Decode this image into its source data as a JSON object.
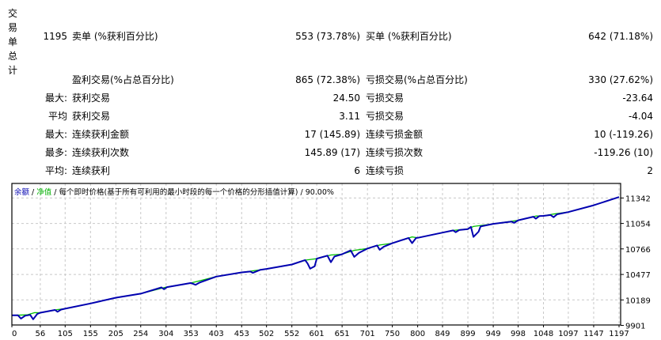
{
  "stats": {
    "section_label": "交易单总计",
    "rows": [
      {
        "c1": "1195",
        "c2": "卖单 (%获利百分比)",
        "c3": "553 (73.78%)",
        "c4": "买单 (%获利百分比)",
        "c5": "642 (71.18%)"
      },
      {
        "c1": "",
        "c2": "盈利交易(%占总百分比)",
        "c3": "865 (72.38%)",
        "c4": "亏损交易(%占总百分比)",
        "c5": "330 (27.62%)"
      },
      {
        "c1": "最大:",
        "c2": "获利交易",
        "c3": "24.50",
        "c4": "亏损交易",
        "c5": "-23.64"
      },
      {
        "c1": "平均",
        "c2": "获利交易",
        "c3": "3.11",
        "c4": "亏损交易",
        "c5": "-4.04"
      },
      {
        "c1": "最大:",
        "c2": "连续获利金额",
        "c3": "17 (145.89)",
        "c4": "连续亏损金额",
        "c5": "10 (-119.26)"
      },
      {
        "c1": "最多:",
        "c2": "连续获利次数",
        "c3": "145.89 (17)",
        "c4": "连续亏损次数",
        "c5": "-119.26 (10)"
      },
      {
        "c1": "平均:",
        "c2": "连续获利",
        "c3": "6",
        "c4": "连续亏损",
        "c5": "2"
      }
    ]
  },
  "chart_legend": {
    "balance": "余额",
    "sep1": " / ",
    "equity": "净值",
    "sep2": " / ",
    "model": "每个即时价格(基于所有可利用的最小时段的每一个价格的分形插值计算)",
    "sep3": " / ",
    "quality": "90.00%"
  },
  "chart_data": {
    "type": "line",
    "title": "",
    "xlabel": "",
    "ylabel": "",
    "x_ticks": [
      0,
      56,
      105,
      155,
      205,
      254,
      304,
      353,
      403,
      453,
      502,
      552,
      601,
      651,
      701,
      750,
      800,
      849,
      899,
      949,
      998,
      1048,
      1097,
      1147,
      1197
    ],
    "y_ticks": [
      9901,
      10189,
      10477,
      10766,
      11054,
      11342
    ],
    "xlim": [
      0,
      1200
    ],
    "ylim": [
      9901,
      11505
    ],
    "grid": true,
    "colors": {
      "balance": "#0000b0",
      "equity": "#00c000"
    },
    "series": [
      {
        "name": "净值",
        "color": "#00c000",
        "points": [
          [
            0,
            10015
          ],
          [
            30,
            10020
          ],
          [
            45,
            10045
          ],
          [
            56,
            10044
          ],
          [
            90,
            10080
          ],
          [
            105,
            10090
          ],
          [
            155,
            10149
          ],
          [
            205,
            10214
          ],
          [
            254,
            10260
          ],
          [
            304,
            10334
          ],
          [
            353,
            10380
          ],
          [
            403,
            10453
          ],
          [
            453,
            10500
          ],
          [
            502,
            10540
          ],
          [
            552,
            10590
          ],
          [
            580,
            10640
          ],
          [
            601,
            10656
          ],
          [
            629,
            10697
          ],
          [
            651,
            10706
          ],
          [
            675,
            10750
          ],
          [
            701,
            10770
          ],
          [
            725,
            10810
          ],
          [
            750,
            10830
          ],
          [
            789,
            10902
          ],
          [
            800,
            10891
          ],
          [
            849,
            10950
          ],
          [
            870,
            10975
          ],
          [
            899,
            10990
          ],
          [
            910,
            11020
          ],
          [
            949,
            11049
          ],
          [
            998,
            11090
          ],
          [
            1033,
            11138
          ],
          [
            1048,
            11140
          ],
          [
            1068,
            11160
          ],
          [
            1097,
            11183
          ],
          [
            1147,
            11260
          ],
          [
            1197,
            11353
          ]
        ]
      },
      {
        "name": "余额",
        "color": "#0000b0",
        "points": [
          [
            0,
            10015
          ],
          [
            12,
            10015
          ],
          [
            18,
            9978
          ],
          [
            26,
            10010
          ],
          [
            36,
            10020
          ],
          [
            42,
            9970
          ],
          [
            50,
            10030
          ],
          [
            56,
            10044
          ],
          [
            85,
            10075
          ],
          [
            90,
            10055
          ],
          [
            97,
            10080
          ],
          [
            105,
            10090
          ],
          [
            155,
            10149
          ],
          [
            205,
            10214
          ],
          [
            254,
            10260
          ],
          [
            295,
            10330
          ],
          [
            300,
            10310
          ],
          [
            306,
            10334
          ],
          [
            353,
            10380
          ],
          [
            362,
            10360
          ],
          [
            370,
            10385
          ],
          [
            403,
            10453
          ],
          [
            453,
            10500
          ],
          [
            470,
            10510
          ],
          [
            475,
            10495
          ],
          [
            490,
            10530
          ],
          [
            502,
            10540
          ],
          [
            552,
            10590
          ],
          [
            578,
            10640
          ],
          [
            583,
            10600
          ],
          [
            588,
            10542
          ],
          [
            597,
            10570
          ],
          [
            601,
            10656
          ],
          [
            622,
            10690
          ],
          [
            629,
            10616
          ],
          [
            636,
            10680
          ],
          [
            651,
            10706
          ],
          [
            668,
            10750
          ],
          [
            675,
            10676
          ],
          [
            684,
            10720
          ],
          [
            701,
            10770
          ],
          [
            720,
            10805
          ],
          [
            725,
            10756
          ],
          [
            733,
            10790
          ],
          [
            750,
            10830
          ],
          [
            782,
            10890
          ],
          [
            789,
            10831
          ],
          [
            797,
            10890
          ],
          [
            800,
            10891
          ],
          [
            849,
            10950
          ],
          [
            870,
            10975
          ],
          [
            875,
            10955
          ],
          [
            882,
            10980
          ],
          [
            899,
            10990
          ],
          [
            905,
            11015
          ],
          [
            910,
            10902
          ],
          [
            920,
            10960
          ],
          [
            924,
            11020
          ],
          [
            949,
            11049
          ],
          [
            985,
            11075
          ],
          [
            990,
            11060
          ],
          [
            998,
            11090
          ],
          [
            1028,
            11130
          ],
          [
            1033,
            11108
          ],
          [
            1040,
            11138
          ],
          [
            1048,
            11140
          ],
          [
            1062,
            11150
          ],
          [
            1068,
            11125
          ],
          [
            1075,
            11158
          ],
          [
            1097,
            11183
          ],
          [
            1147,
            11260
          ],
          [
            1197,
            11353
          ]
        ]
      }
    ]
  }
}
